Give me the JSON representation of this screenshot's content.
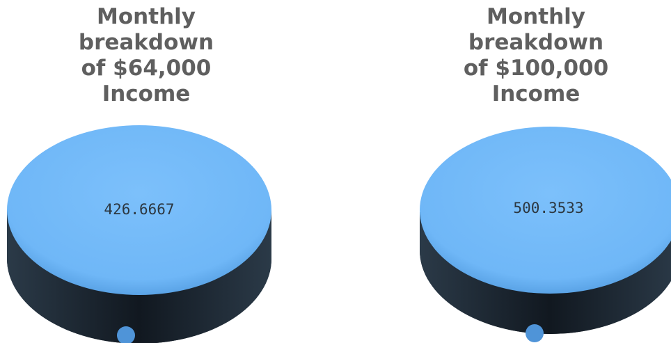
{
  "chart_data": [
    {
      "type": "pie",
      "title_lines": [
        "Monthly",
        "breakdown",
        "of $64,000",
        "Income"
      ],
      "categories": [
        "",
        ""
      ],
      "values": [
        426.6667,
        0
      ],
      "value_labels": [
        "426.6667"
      ],
      "colors": [
        "#6fb7f7",
        "#4f94d8"
      ],
      "side_color": "#1e2a36"
    },
    {
      "type": "pie",
      "title_lines": [
        "Monthly",
        "breakdown",
        "of $100,000",
        "Income"
      ],
      "categories": [
        "",
        ""
      ],
      "values": [
        500.3533,
        0
      ],
      "value_labels": [
        "500.3533"
      ],
      "colors": [
        "#6fb7f7",
        "#4f94d8"
      ],
      "side_color": "#1e2a36"
    }
  ]
}
